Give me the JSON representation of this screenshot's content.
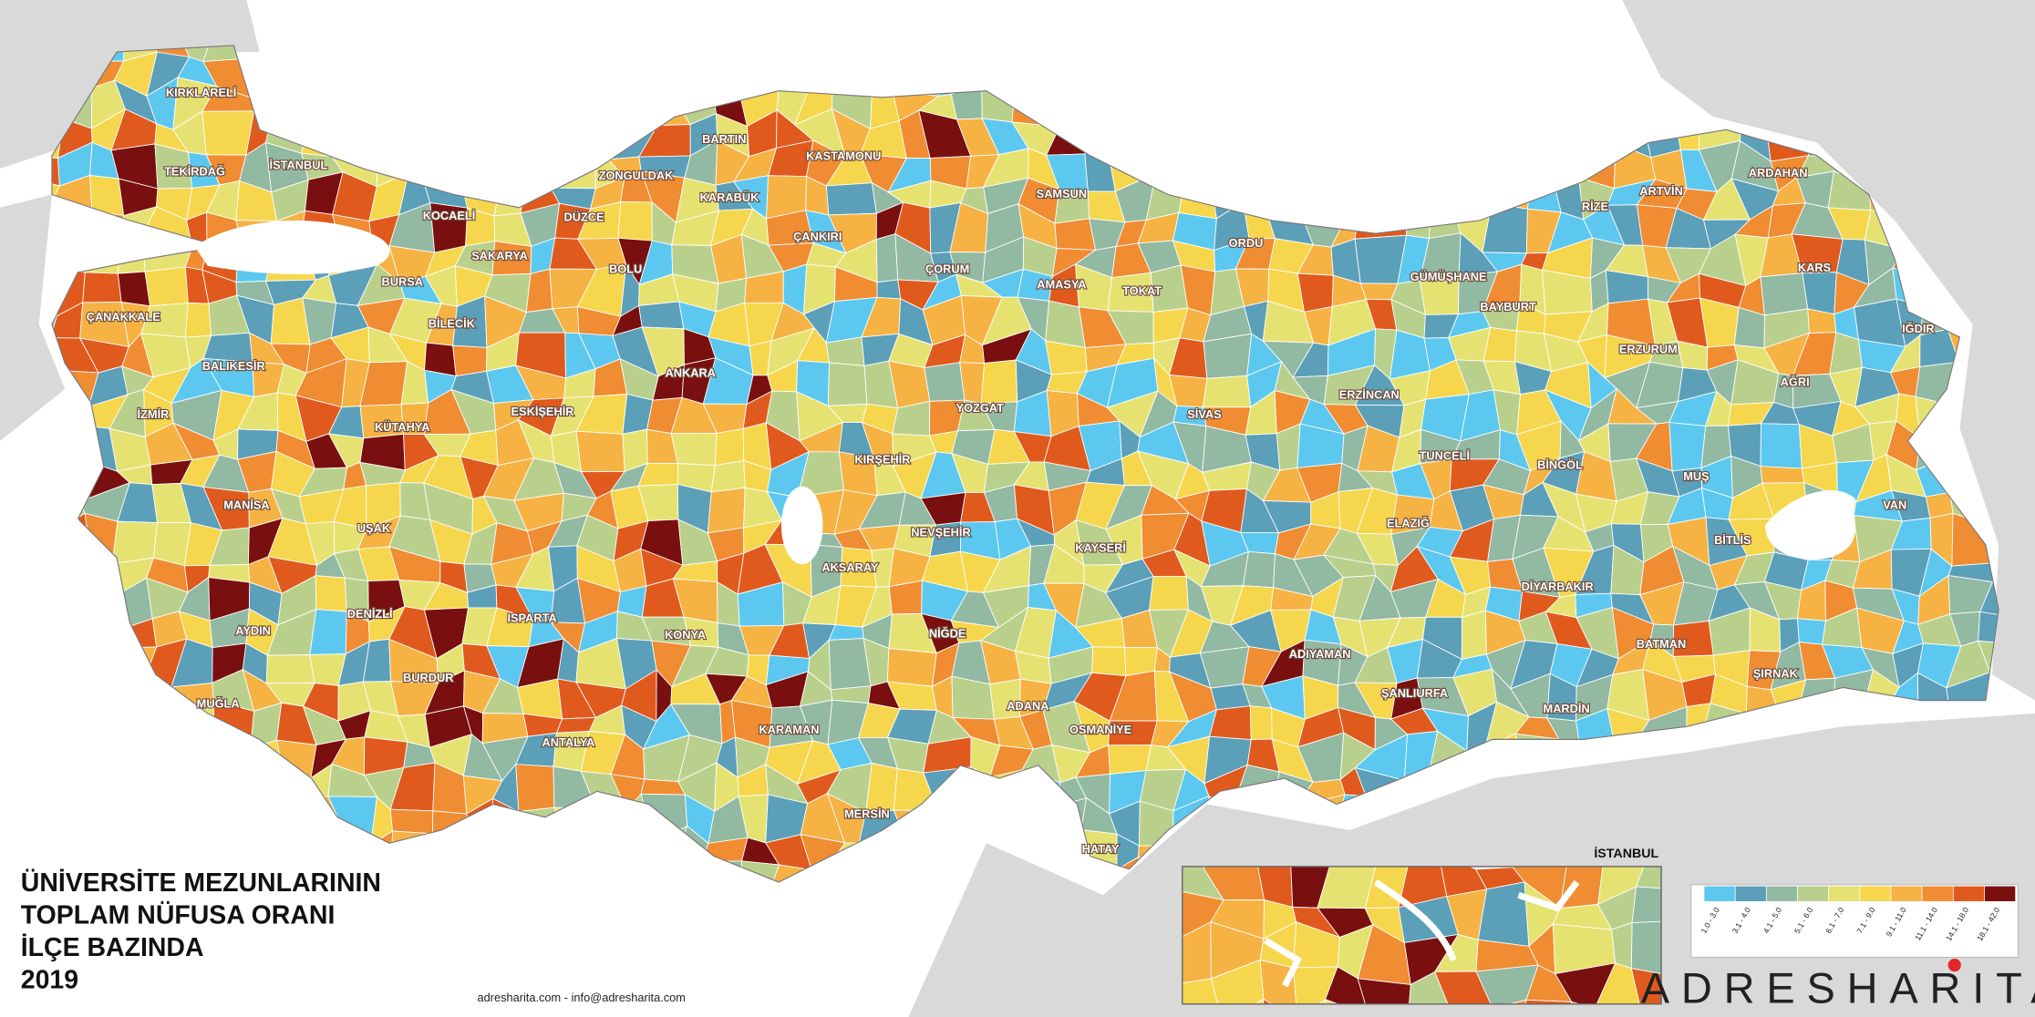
{
  "title": {
    "lines": [
      "ÜNİVERSİTE MEZUNLARININ",
      "TOPLAM NÜFUSA ORANI",
      "İLÇE BAZINDA",
      "2019"
    ]
  },
  "legend": {
    "items": [
      {
        "label": "1.0 - 3.0",
        "color": "#5cc8f0"
      },
      {
        "label": "3.1 - 4.0",
        "color": "#5b9fb9"
      },
      {
        "label": "4.1 - 5.0",
        "color": "#92b9a2"
      },
      {
        "label": "5.1 - 6.0",
        "color": "#b9d08c"
      },
      {
        "label": "6.1 - 7.0",
        "color": "#e6e272"
      },
      {
        "label": "7.1 - 9.0",
        "color": "#f6d64c"
      },
      {
        "label": "9.1 - 11.0",
        "color": "#f6b243"
      },
      {
        "label": "11.1 - 14.0",
        "color": "#f08c32"
      },
      {
        "label": "14.1 - 18.0",
        "color": "#e05a1e"
      },
      {
        "label": "18.1 - 42.0",
        "color": "#7a0f0f"
      }
    ]
  },
  "inset": {
    "title": "İSTANBUL"
  },
  "provinces": [
    "KIRKLARELİ",
    "TEKİRDAĞ",
    "İSTANBUL",
    "ÇANAKKALE",
    "BALIKESİR",
    "İZMİR",
    "MANİSA",
    "UŞAK",
    "AYDIN",
    "DENİZLİ",
    "MUĞLA",
    "BURDUR",
    "ISPARTA",
    "ANTALYA",
    "KONYA",
    "KARAMAN",
    "MERSİN",
    "ADANA",
    "HATAY",
    "OSMANİYE",
    "KAYSERİ",
    "NİĞDE",
    "AKSARAY",
    "NEVŞEHİR",
    "KIRŞEHİR",
    "ANKARA",
    "ESKİŞEHİR",
    "KÜTAHYA",
    "BİLECİK",
    "BURSA",
    "KOCAELİ",
    "SAKARYA",
    "DÜZCE",
    "BOLU",
    "ZONGULDAK",
    "BARTIN",
    "KARABÜK",
    "KASTAMONU",
    "ÇANKIRI",
    "ÇORUM",
    "AMASYA",
    "TOKAT",
    "SİVAS",
    "YOZGAT",
    "SAMSUN",
    "ORDU",
    "GÜMÜŞHANE",
    "BAYBURT",
    "RİZE",
    "ARTVİN",
    "ARDAHAN",
    "KARS",
    "IĞDIR",
    "ERZURUM",
    "AĞRI",
    "ERZİNCAN",
    "TUNCELİ",
    "BİNGÖL",
    "MUŞ",
    "VAN",
    "BİTLİS",
    "ELAZIĞ",
    "DİYARBAKIR",
    "BATMAN",
    "ŞIRNAK",
    "MARDİN",
    "ŞANLIURFA",
    "ADIYAMAN"
  ],
  "footer": "adresharita.com - info@adresharita.com",
  "logo": "ADRESHARITA"
}
